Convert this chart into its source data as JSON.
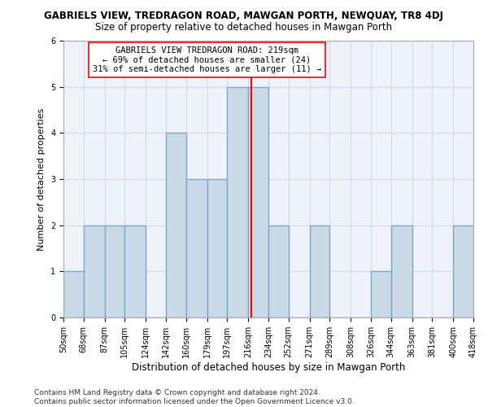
{
  "title": "GABRIELS VIEW, TREDRAGON ROAD, MAWGAN PORTH, NEWQUAY, TR8 4DJ",
  "subtitle": "Size of property relative to detached houses in Mawgan Porth",
  "xlabel": "Distribution of detached houses by size in Mawgan Porth",
  "ylabel": "Number of detached properties",
  "bin_edges": [
    50,
    68,
    87,
    105,
    124,
    142,
    160,
    179,
    197,
    216,
    234,
    252,
    271,
    289,
    308,
    326,
    344,
    363,
    381,
    400,
    418
  ],
  "bar_heights": [
    1,
    2,
    2,
    2,
    0,
    4,
    3,
    3,
    5,
    5,
    2,
    0,
    2,
    0,
    0,
    1,
    2,
    0,
    0,
    2
  ],
  "bar_color": "#c9d9e8",
  "bar_edge_color": "#7aa8c8",
  "bar_linewidth": 1.0,
  "vline_x": 219,
  "vline_color": "red",
  "vline_linewidth": 1.5,
  "annotation_text": "GABRIELS VIEW TREDRAGON ROAD: 219sqm\n← 69% of detached houses are smaller (24)\n31% of semi-detached houses are larger (11) →",
  "annotation_box_color": "white",
  "annotation_box_edgecolor": "red",
  "annotation_fontsize": 7.5,
  "ylim": [
    0,
    6
  ],
  "yticks": [
    0,
    1,
    2,
    3,
    4,
    5,
    6
  ],
  "grid_color": "#d0d8e8",
  "background_color": "#eef2f8",
  "footnote": "Contains HM Land Registry data © Crown copyright and database right 2024.\nContains public sector information licensed under the Open Government Licence v3.0.",
  "title_fontsize": 8.5,
  "subtitle_fontsize": 8.5,
  "xlabel_fontsize": 8.5,
  "ylabel_fontsize": 8,
  "tick_fontsize": 7,
  "footnote_fontsize": 6.5
}
